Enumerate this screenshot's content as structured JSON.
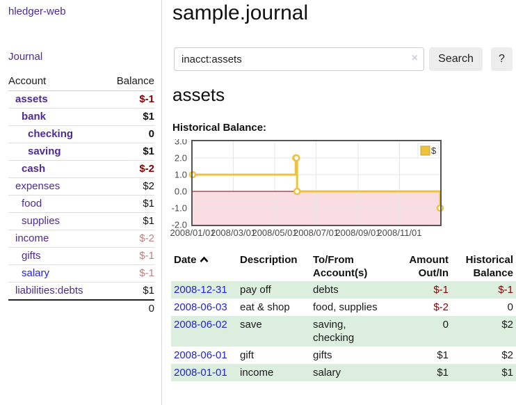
{
  "app": {
    "title": "hledger-web",
    "nav": {
      "journal": "Journal"
    }
  },
  "colors": {
    "link_purple": "#4e2a96",
    "link_blue": "#2222dd",
    "negative": "#880000",
    "negative_muted": "#c08080",
    "row_stripe_green": "#dceedd",
    "series_yellow": "#edc240",
    "chart_negative_region": "#fadde2"
  },
  "sidebar": {
    "headers": {
      "account": "Account",
      "balance": "Balance"
    },
    "accounts": [
      {
        "name": "assets",
        "indent": 1,
        "bold": true,
        "balance": "$-1",
        "cls": "neg"
      },
      {
        "name": "bank",
        "indent": 2,
        "bold": true,
        "balance": "$1",
        "cls": ""
      },
      {
        "name": "checking",
        "indent": 3,
        "bold": true,
        "balance": "0",
        "cls": ""
      },
      {
        "name": "saving",
        "indent": 3,
        "bold": true,
        "balance": "$1",
        "cls": ""
      },
      {
        "name": "cash",
        "indent": 2,
        "bold": true,
        "balance": "$-2",
        "cls": "neg"
      },
      {
        "name": "expenses",
        "indent": 1,
        "bold": false,
        "balance": "$2",
        "cls": ""
      },
      {
        "name": "food",
        "indent": 2,
        "bold": false,
        "balance": "$1",
        "cls": ""
      },
      {
        "name": "supplies",
        "indent": 2,
        "bold": false,
        "balance": "$1",
        "cls": ""
      },
      {
        "name": "income",
        "indent": 1,
        "bold": false,
        "balance": "$-2",
        "cls": "negl"
      },
      {
        "name": "gifts",
        "indent": 2,
        "bold": false,
        "balance": "$-1",
        "cls": "negl"
      },
      {
        "name": "salary",
        "indent": 2,
        "bold": false,
        "blue": true,
        "balance": "$-1",
        "cls": "negl"
      },
      {
        "name": "liabilities:debts",
        "indent": 1,
        "bold": false,
        "balance": "$1",
        "cls": ""
      }
    ],
    "total": "0"
  },
  "header": {
    "title": "sample.journal",
    "search": {
      "value": "inacct:assets",
      "clear_icon": "×",
      "search_button": "Search",
      "help_button": "?"
    }
  },
  "main": {
    "account_heading": "assets",
    "chart_label": "Historical Balance:"
  },
  "chart_data": {
    "type": "line",
    "step": true,
    "title": "Historical Balance",
    "series": [
      {
        "name": "$",
        "color": "#edc240",
        "points": [
          [
            "2008-01-01",
            1
          ],
          [
            "2008-06-01",
            2
          ],
          [
            "2008-06-02",
            2
          ],
          [
            "2008-06-03",
            0
          ],
          [
            "2008-12-31",
            -1
          ]
        ]
      }
    ],
    "x_range": [
      "2008-01-01",
      "2008-12-31"
    ],
    "ylim": [
      -2,
      3
    ],
    "yticks": [
      "3.0",
      "2.0",
      "1.0",
      "0.0",
      "-1.0",
      "-2.0"
    ],
    "xticks": [
      "2008/01/01",
      "2008/03/01",
      "2008/05/01",
      "2008/07/01",
      "2008/09/01",
      "2008/11/01"
    ],
    "grid": true,
    "legend_position": "top-right",
    "negative_region_color": "#fadde2",
    "zero_line_color": "#8b0000"
  },
  "register": {
    "headers": {
      "date": "Date",
      "description": "Description",
      "account": "To/From Account(s)",
      "amount": "Amount Out/In",
      "balance": "Historical Balance"
    },
    "rows": [
      {
        "date": "2008-12-31",
        "description": "pay off",
        "accounts": [
          "debts"
        ],
        "amount": "$-1",
        "amount_negative": true,
        "balance": "$-1",
        "balance_negative": true
      },
      {
        "date": "2008-06-03",
        "description": "eat & shop",
        "accounts": [
          "food, supplies"
        ],
        "amount": "$-2",
        "amount_negative": true,
        "balance": "0",
        "balance_negative": false
      },
      {
        "date": "2008-06-02",
        "description": "save",
        "accounts": [
          "saving,",
          "checking"
        ],
        "amount": "0",
        "amount_negative": false,
        "balance": "$2",
        "balance_negative": false
      },
      {
        "date": "2008-06-01",
        "description": "gift",
        "accounts": [
          "gifts"
        ],
        "amount": "$1",
        "amount_negative": false,
        "balance": "$2",
        "balance_negative": false
      },
      {
        "date": "2008-01-01",
        "description": "income",
        "accounts": [
          "salary"
        ],
        "amount": "$1",
        "amount_negative": false,
        "balance": "$1",
        "balance_negative": false
      }
    ]
  }
}
